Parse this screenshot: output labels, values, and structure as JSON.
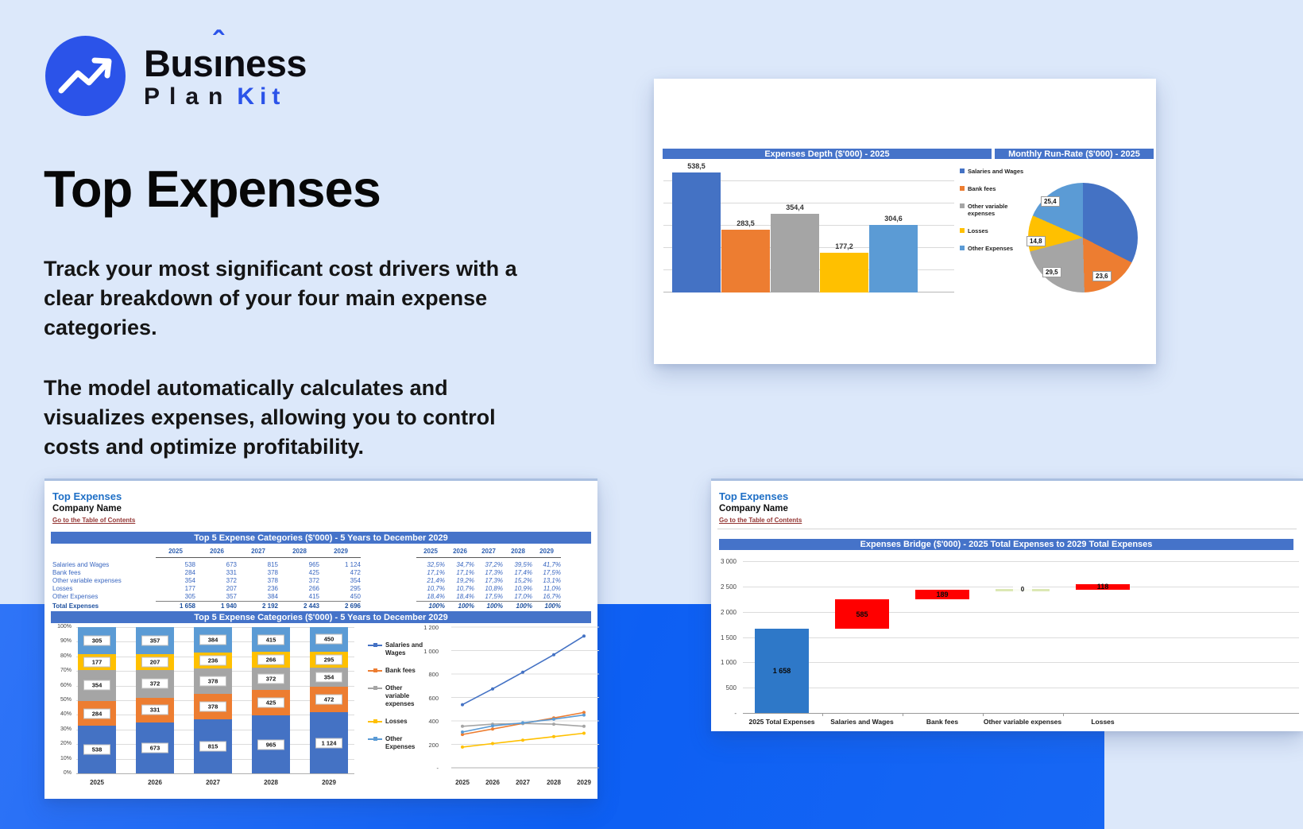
{
  "brand": {
    "part1": "Bus",
    "accent": "ı",
    "part2": "ness",
    "word1": "Plan",
    "word2": "Kit"
  },
  "hero": {
    "title": "Top Expenses",
    "paragraph1": "Track your most significant cost drivers with a\nclear breakdown of your four main expense\ncategories.",
    "paragraph2": "The model automatically calculates and\nvisualizes expenses, allowing you to control\ncosts and optimize profitability."
  },
  "sheet": {
    "title": "Top Expenses",
    "company": "Company Name",
    "link": "Go to the Table of Contents"
  },
  "palette": {
    "series": [
      "#4472C4",
      "#ED7D31",
      "#A5A5A5",
      "#FFC000",
      "#5B9BD5"
    ],
    "red": "#FF0000",
    "waterfall_blue": "#2E78C8",
    "zero_bar": "#DCE8B4",
    "header": "#4573C9",
    "accent": "#2b53e9"
  },
  "legend": [
    "Salaries and Wages",
    "Bank fees",
    "Other variable expenses",
    "Losses",
    "Other Expenses"
  ],
  "years": [
    "2025",
    "2026",
    "2027",
    "2028",
    "2029"
  ],
  "table": {
    "title": "Top 5 Expense Categories ($'000) - 5 Years to December 2029",
    "rows": [
      {
        "label": "Salaries and Wages",
        "values": [
          "538",
          "673",
          "815",
          "965",
          "1 124"
        ],
        "pct": [
          "32,5%",
          "34,7%",
          "37,2%",
          "39,5%",
          "41,7%"
        ]
      },
      {
        "label": "Bank fees",
        "values": [
          "284",
          "331",
          "378",
          "425",
          "472"
        ],
        "pct": [
          "17,1%",
          "17,1%",
          "17,3%",
          "17,4%",
          "17,5%"
        ]
      },
      {
        "label": "Other variable expenses",
        "values": [
          "354",
          "372",
          "378",
          "372",
          "354"
        ],
        "pct": [
          "21,4%",
          "19,2%",
          "17,3%",
          "15,2%",
          "13,1%"
        ]
      },
      {
        "label": "Losses",
        "values": [
          "177",
          "207",
          "236",
          "266",
          "295"
        ],
        "pct": [
          "10,7%",
          "10,7%",
          "10,8%",
          "10,9%",
          "11,0%"
        ]
      },
      {
        "label": "Other Expenses",
        "values": [
          "305",
          "357",
          "384",
          "415",
          "450"
        ],
        "pct": [
          "18,4%",
          "18,4%",
          "17,5%",
          "17,0%",
          "16,7%"
        ]
      }
    ],
    "total": {
      "label": "Total Expenses",
      "values": [
        "1 658",
        "1 940",
        "2 192",
        "2 443",
        "2 696"
      ],
      "pct": [
        "100%",
        "100%",
        "100%",
        "100%",
        "100%"
      ]
    }
  },
  "chart_data": [
    {
      "id": "expenses_depth",
      "type": "bar",
      "title": "Expenses Depth ($'000) - 2025",
      "categories": [
        "Salaries and Wages",
        "Bank fees",
        "Other variable expenses",
        "Losses",
        "Other Expenses"
      ],
      "values": [
        538.5,
        283.5,
        354.4,
        177.2,
        304.6
      ],
      "labels": [
        "538,5",
        "283,5",
        "354,4",
        "177,2",
        "304,6"
      ],
      "ylim": [
        0,
        590
      ],
      "grid_step": 100,
      "legend_position": "right",
      "y_tick_labels_visible": false
    },
    {
      "id": "monthly_run_rate",
      "type": "pie",
      "title": "Monthly Run-Rate ($'000) - 2025",
      "slices": [
        {
          "name": "Salaries and Wages",
          "value": 44.9,
          "label": ""
        },
        {
          "name": "Bank fees",
          "value": 23.6,
          "label": "23,6"
        },
        {
          "name": "Other variable expenses",
          "value": 29.5,
          "label": "29,5"
        },
        {
          "name": "Losses",
          "value": 14.8,
          "label": "14,8"
        },
        {
          "name": "Other Expenses",
          "value": 25.4,
          "label": "25,4"
        }
      ],
      "start": "12 o'clock, clockwise"
    },
    {
      "id": "top5_stacked",
      "type": "bar",
      "subtype": "stacked-100",
      "title": "Top 5 Expense Categories ($'000) - 5 Years to December 2029",
      "categories": [
        "2025",
        "2026",
        "2027",
        "2028",
        "2029"
      ],
      "series": [
        {
          "name": "Salaries and Wages",
          "values": [
            538,
            673,
            815,
            965,
            1124
          ],
          "labels": [
            "538",
            "673",
            "815",
            "965",
            "1 124"
          ]
        },
        {
          "name": "Bank fees",
          "values": [
            284,
            331,
            378,
            425,
            472
          ],
          "labels": [
            "284",
            "331",
            "378",
            "425",
            "472"
          ]
        },
        {
          "name": "Other variable expenses",
          "values": [
            354,
            372,
            378,
            372,
            354
          ],
          "labels": [
            "354",
            "372",
            "378",
            "372",
            "354"
          ]
        },
        {
          "name": "Losses",
          "values": [
            177,
            207,
            236,
            266,
            295
          ],
          "labels": [
            "177",
            "207",
            "236",
            "266",
            "295"
          ]
        },
        {
          "name": "Other Expenses",
          "values": [
            305,
            357,
            384,
            415,
            450
          ],
          "labels": [
            "305",
            "357",
            "384",
            "415",
            "450"
          ]
        }
      ],
      "y_ticks": [
        "100%",
        "90%",
        "80%",
        "70%",
        "60%",
        "50%",
        "40%",
        "30%",
        "20%",
        "10%",
        "0%"
      ]
    },
    {
      "id": "top5_lines",
      "type": "line",
      "categories": [
        "2025",
        "2026",
        "2027",
        "2028",
        "2029"
      ],
      "series": [
        {
          "name": "Salaries and Wages",
          "values": [
            538,
            673,
            815,
            965,
            1124
          ]
        },
        {
          "name": "Bank fees",
          "values": [
            284,
            331,
            378,
            425,
            472
          ]
        },
        {
          "name": "Other variable expenses",
          "values": [
            354,
            372,
            378,
            372,
            354
          ]
        },
        {
          "name": "Losses",
          "values": [
            177,
            207,
            236,
            266,
            295
          ]
        },
        {
          "name": "Other Expenses",
          "values": [
            305,
            357,
            384,
            415,
            450
          ]
        }
      ],
      "ylim": [
        0,
        1200
      ],
      "y_ticks": [
        "1 200",
        "1 000",
        "800",
        "600",
        "400",
        "200",
        "-"
      ]
    },
    {
      "id": "expenses_bridge",
      "type": "waterfall",
      "title": "Expenses Bridge ($'000) - 2025 Total Expenses to 2029 Total Expenses",
      "categories": [
        "2025 Total Expenses",
        "Salaries and Wages",
        "Bank fees",
        "Other variable expenses",
        "Losses"
      ],
      "values": [
        1658,
        585,
        189,
        0,
        118
      ],
      "labels": [
        "1 658",
        "585",
        "189",
        "0",
        "118"
      ],
      "bar_types": [
        "total",
        "increase",
        "increase",
        "zero",
        "increase"
      ],
      "ylim": [
        0,
        3000
      ],
      "y_ticks": [
        "3 000",
        "2 500",
        "2 000",
        "1 500",
        "1 000",
        "500",
        "-"
      ]
    }
  ]
}
